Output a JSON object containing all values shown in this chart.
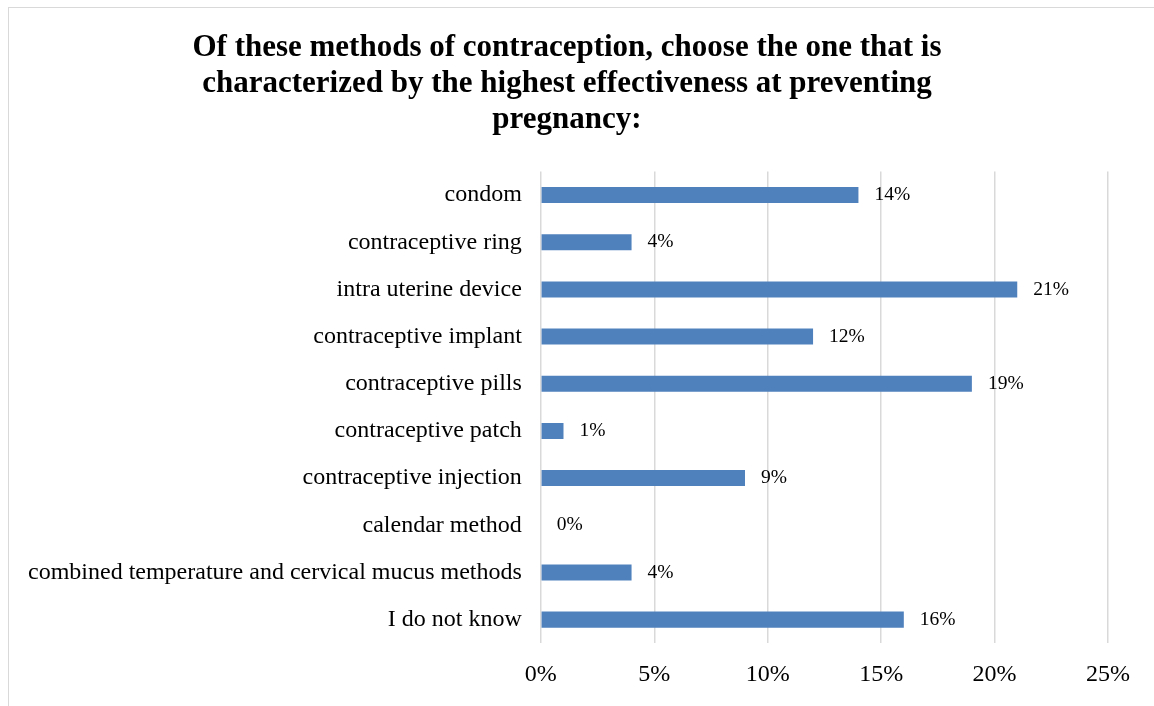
{
  "chart_data": {
    "type": "bar",
    "orientation": "horizontal",
    "title": "Of these methods of contraception, choose the one that is characterized by the highest effectiveness at preventing pregnancy:",
    "categories": [
      "condom",
      "contraceptive ring",
      "intra uterine device",
      "contraceptive implant",
      "contraceptive pills",
      "contraceptive patch",
      "contraceptive injection",
      "calendar method",
      "combined temperature and cervical mucus methods",
      "I do not know"
    ],
    "values": [
      14,
      4,
      21,
      12,
      19,
      1,
      9,
      0,
      4,
      16
    ],
    "value_labels": [
      "14%",
      "4%",
      "21%",
      "12%",
      "19%",
      "1%",
      "9%",
      "0%",
      "4%",
      "16%"
    ],
    "color": "#4f81bd",
    "xlim": [
      0,
      25
    ],
    "xticks": [
      {
        "value": 0,
        "label": "0%"
      },
      {
        "value": 5,
        "label": "5%"
      },
      {
        "value": 10,
        "label": "10%"
      },
      {
        "value": 15,
        "label": "15%"
      },
      {
        "value": 20,
        "label": "20%"
      },
      {
        "value": 25,
        "label": "25%"
      }
    ],
    "grid": "x"
  }
}
